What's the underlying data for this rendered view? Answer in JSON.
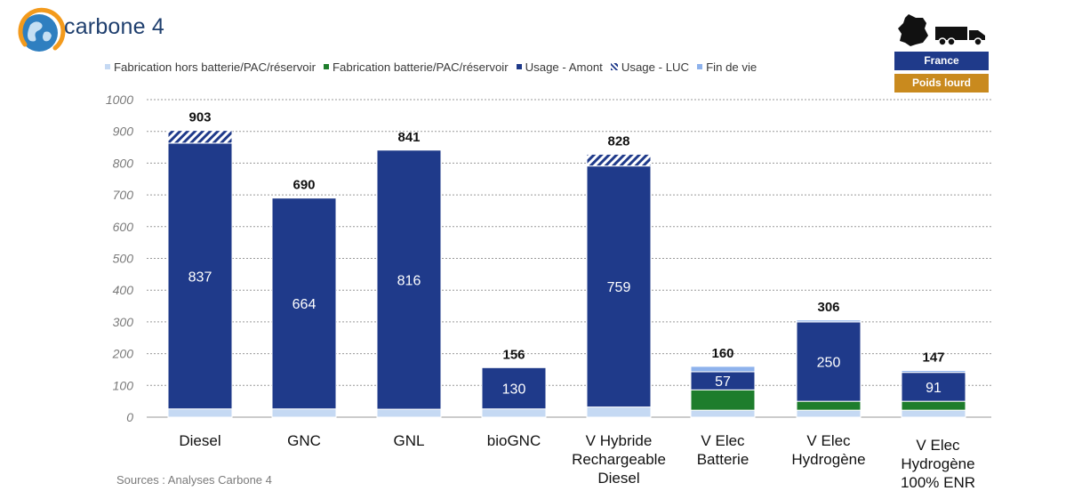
{
  "brand": {
    "name": "carbone 4"
  },
  "legend": [
    {
      "label": "Fabrication hors batterie/PAC/réservoir",
      "color": "#c5d9f3",
      "style": "solid"
    },
    {
      "label": "Fabrication batterie/PAC/réservoir",
      "color": "#1e7d2c",
      "style": "solid"
    },
    {
      "label": "Usage - Amont",
      "color": "#1f3a8a",
      "style": "solid"
    },
    {
      "label": "Usage - LUC",
      "color": "#1f3a8a",
      "style": "hatched"
    },
    {
      "label": "Fin de vie",
      "color": "#8eb2ec",
      "style": "solid"
    }
  ],
  "badge": {
    "country": "France",
    "vehicle": "Poids lourd",
    "country_color": "#1f3a8a",
    "vehicle_color": "#c98a1e",
    "icons": [
      "france-map-icon",
      "truck-icon"
    ]
  },
  "sources": "Sources : Analyses Carbone 4",
  "chart_data": {
    "type": "bar",
    "stacked": true,
    "categories": [
      [
        "Diesel"
      ],
      [
        "GNC"
      ],
      [
        "GNL"
      ],
      [
        "bioGNC"
      ],
      [
        "V Hybride",
        "Rechargeable",
        "Diesel"
      ],
      [
        "V Elec",
        "Batterie"
      ],
      [
        "V Elec",
        "Hydrogène"
      ],
      [
        "V Elec",
        "Hydrogène",
        "100% ENR"
      ]
    ],
    "totals": [
      903,
      690,
      841,
      156,
      828,
      160,
      306,
      147
    ],
    "series": [
      {
        "name": "Fabrication hors batterie/PAC/réservoir",
        "color": "#c5d9f3",
        "values": [
          26,
          26,
          25,
          26,
          32,
          22,
          22,
          22
        ]
      },
      {
        "name": "Fabrication batterie/PAC/réservoir",
        "color": "#1e7d2c",
        "values": [
          0,
          0,
          0,
          0,
          0,
          64,
          28,
          28
        ]
      },
      {
        "name": "Usage - Amont",
        "color": "#1f3a8a",
        "values": [
          837,
          664,
          816,
          130,
          759,
          57,
          250,
          91
        ]
      },
      {
        "name": "Usage - LUC",
        "color": "#1f3a8a",
        "hatched": true,
        "values": [
          40,
          0,
          0,
          0,
          37,
          0,
          0,
          0
        ]
      },
      {
        "name": "Fin de vie",
        "color": "#8eb2ec",
        "values": [
          0,
          0,
          0,
          0,
          0,
          17,
          6,
          6
        ]
      }
    ],
    "value_labels": [
      "837",
      "664",
      "816",
      "130",
      "759",
      "57",
      "250",
      "91"
    ],
    "ylim": [
      0,
      1000
    ],
    "yticks": [
      0,
      100,
      200,
      300,
      400,
      500,
      600,
      700,
      800,
      900,
      1000
    ],
    "grid": true,
    "legend_position": "top"
  }
}
